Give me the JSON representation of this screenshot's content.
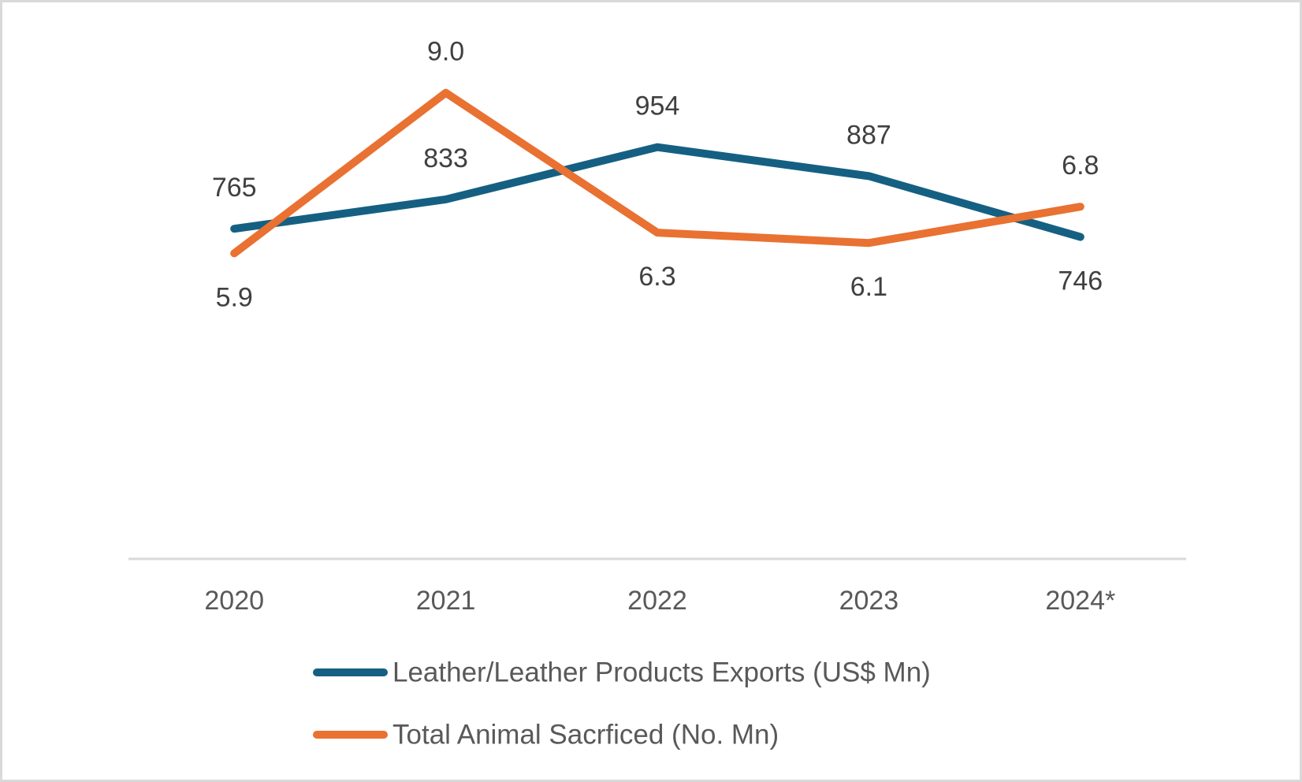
{
  "chart_data": {
    "type": "line",
    "title": "",
    "xlabel": "",
    "ylabel": "",
    "categories": [
      "2020",
      "2021",
      "2022",
      "2023",
      "2024*"
    ],
    "series": [
      {
        "name": "Leather/Leather Products Exports (US$ Mn)",
        "color": "#156082",
        "values": [
          765,
          833,
          954,
          887,
          746
        ],
        "labels": [
          "765",
          "833",
          "954",
          "887",
          "746"
        ],
        "label_positions": [
          "above",
          "above",
          "above",
          "above",
          "below"
        ],
        "axis": "primary",
        "ylim": [
          0,
          1200
        ]
      },
      {
        "name": "Total Animal Sacrficed (No. Mn)",
        "color": "#E97132",
        "values": [
          5.9,
          9.0,
          6.3,
          6.1,
          6.8
        ],
        "labels": [
          "5.9",
          "9.0",
          "6.3",
          "6.1",
          "6.8"
        ],
        "label_positions": [
          "below",
          "above",
          "below",
          "below",
          "above"
        ],
        "axis": "secondary",
        "ylim": [
          0,
          10
        ]
      }
    ],
    "grid": false,
    "legend": "bottom-center",
    "axis_color": "#d9d9d9"
  }
}
